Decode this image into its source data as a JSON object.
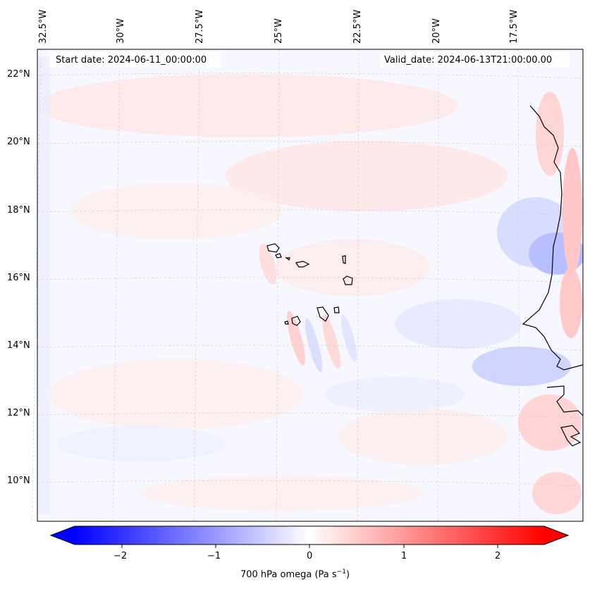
{
  "map": {
    "start_date": "Start date: 2024-06-11_00:00:00",
    "valid_date": "Valid_date: 2024-06-13T21:00:00.00",
    "lon_labels": [
      "32.5°W",
      "30°W",
      "27.5°W",
      "25°W",
      "22.5°W",
      "20°W",
      "17.5°W"
    ],
    "lat_labels": [
      "22°N",
      "20°N",
      "18°N",
      "16°N",
      "14°N",
      "12°N",
      "10°N"
    ],
    "variable": "700 hPa omega (Pa s",
    "unit_exponent": "−1",
    "unit_close": ")"
  },
  "colorbar": {
    "min": -2.7,
    "max": 2.7,
    "ticks": [
      "−2",
      "−1",
      "0",
      "1",
      "2"
    ],
    "tick_values": [
      -2,
      -1,
      0,
      1,
      2
    ],
    "low_color": "#0000ff",
    "high_color": "#ff0000",
    "mid_color": "#ffffff"
  }
}
